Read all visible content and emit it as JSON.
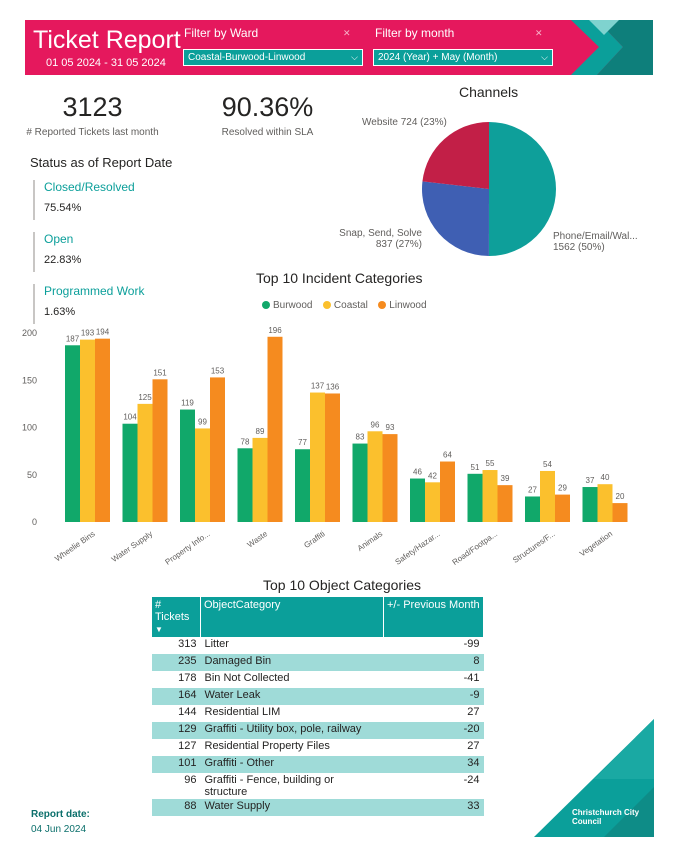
{
  "header": {
    "title": "Ticket Report",
    "date_range": "01 05 2024 - 31 05 2024",
    "ward_filter": {
      "label": "Filter by Ward",
      "value": "Coastal-Burwood-Linwood"
    },
    "month_filter": {
      "label": "Filter by month",
      "value": "2024 (Year) + May (Month)"
    },
    "colors": {
      "brand_pink": "#e5185d",
      "brand_teal": "#0b9f9a"
    }
  },
  "kpis": [
    {
      "value": "3123",
      "label": "# Reported Tickets last month"
    },
    {
      "value": "90.36%",
      "label": "Resolved within SLA"
    }
  ],
  "status": {
    "title": "Status as of Report Date",
    "items": [
      {
        "label": "Closed/Resolved",
        "value": "75.54%"
      },
      {
        "label": "Open",
        "value": "22.83%"
      },
      {
        "label": "Programmed Work",
        "value": "1.63%"
      }
    ]
  },
  "chart_data": [
    {
      "type": "pie",
      "title": "Channels",
      "slices": [
        {
          "label": "Phone/Email/Wal...",
          "value": 1562,
          "pct": "50%",
          "color": "#0e9f9a",
          "display": "1562 (50%)"
        },
        {
          "label": "Snap, Send, Solve",
          "value": 837,
          "pct": "27%",
          "color": "#3f5fb3",
          "display": "837 (27%)"
        },
        {
          "label": "Website",
          "value": 724,
          "pct": "23%",
          "color": "#c21f47",
          "display": "Website 724 (23%)"
        }
      ]
    },
    {
      "type": "bar",
      "title": "Top 10 Incident Categories",
      "categories": [
        "Wheelie Bins",
        "Water Supply",
        "Property Info...",
        "Waste",
        "Graffiti",
        "Animals",
        "Safety/Hazar...",
        "Road/Footpa...",
        "Structures/F...",
        "Vegetation"
      ],
      "series": [
        {
          "name": "Burwood",
          "color": "#11a86a",
          "values": [
            187,
            104,
            119,
            78,
            77,
            83,
            46,
            51,
            27,
            37
          ]
        },
        {
          "name": "Coastal",
          "color": "#fbc02d",
          "values": [
            193,
            125,
            99,
            89,
            137,
            96,
            42,
            55,
            54,
            40
          ]
        },
        {
          "name": "Linwood",
          "color": "#f58b1f",
          "values": [
            194,
            151,
            153,
            196,
            136,
            93,
            64,
            39,
            29,
            20
          ]
        }
      ],
      "ylim": [
        0,
        200
      ],
      "yticks": [
        0,
        50,
        100,
        150,
        200
      ],
      "legend": "top-center",
      "grid": false
    }
  ],
  "objects": {
    "title": "Top 10 Object Categories",
    "columns": [
      "# Tickets",
      "ObjectCategory",
      "+/- Previous Month"
    ],
    "rows": [
      {
        "tickets": "313",
        "category": "Litter",
        "change": "-99"
      },
      {
        "tickets": "235",
        "category": "Damaged Bin",
        "change": "8"
      },
      {
        "tickets": "178",
        "category": "Bin Not Collected",
        "change": "-41"
      },
      {
        "tickets": "164",
        "category": "Water Leak",
        "change": "-9"
      },
      {
        "tickets": "144",
        "category": "Residential LIM",
        "change": "27"
      },
      {
        "tickets": "129",
        "category": "Graffiti - Utility box, pole, railway",
        "change": "-20"
      },
      {
        "tickets": "127",
        "category": "Residential Property Files",
        "change": "27"
      },
      {
        "tickets": "101",
        "category": "Graffiti - Other",
        "change": "34"
      },
      {
        "tickets": "96",
        "category": "Graffiti - Fence, building or structure",
        "change": "-24"
      },
      {
        "tickets": "88",
        "category": "Water Supply",
        "change": "33"
      }
    ]
  },
  "footer": {
    "report_date_label": "Report date:",
    "report_date": "04 Jun 2024",
    "logo_text": "Christchurch City Council"
  }
}
